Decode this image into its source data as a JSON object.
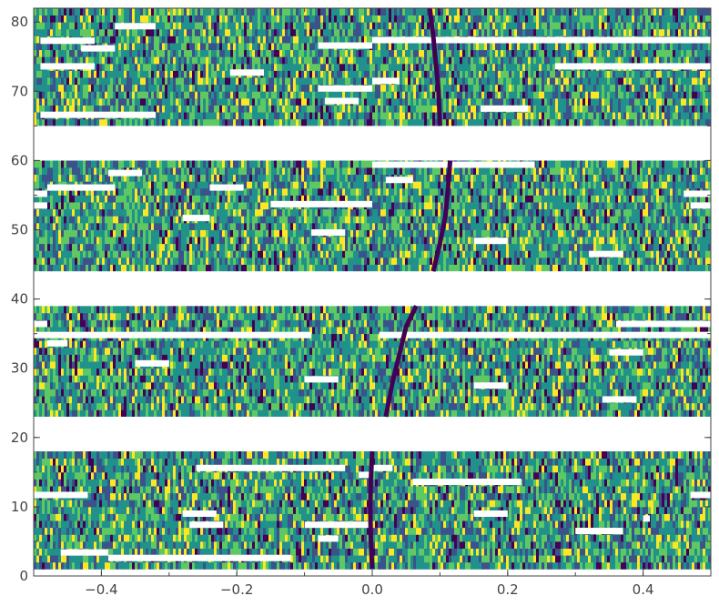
{
  "chart_data": {
    "type": "heatmap",
    "title": "",
    "xlabel": "",
    "ylabel": "",
    "xlim": [
      -0.5,
      0.5
    ],
    "ylim": [
      0,
      82
    ],
    "x_ticks": [
      -0.4,
      -0.2,
      0.0,
      0.2,
      0.4
    ],
    "x_tick_labels": [
      "−0.4",
      "−0.2",
      "0.0",
      "0.2",
      "0.4"
    ],
    "y_ticks": [
      0,
      10,
      20,
      30,
      40,
      50,
      60,
      70,
      80
    ],
    "y_tick_labels": [
      "0",
      "10",
      "20",
      "30",
      "40",
      "50",
      "60",
      "70",
      "80"
    ],
    "colormap": [
      "#440154",
      "#3b528b",
      "#21918c",
      "#5ec962",
      "#fde725"
    ],
    "grid": false,
    "data_rows": [
      [
        1,
        18
      ],
      [
        23,
        39
      ],
      [
        44,
        60
      ],
      [
        65,
        82
      ]
    ],
    "missing_bands": [
      [
        18,
        23
      ],
      [
        39,
        44
      ],
      [
        60,
        65
      ]
    ],
    "trace": {
      "color": "#440154",
      "segments": [
        [
          [
            0.0,
            1
          ],
          [
            -0.002,
            5
          ],
          [
            -0.003,
            10
          ],
          [
            -0.002,
            14
          ],
          [
            0.0,
            18
          ]
        ],
        [
          [
            0.02,
            23
          ],
          [
            0.03,
            28
          ],
          [
            0.04,
            32
          ],
          [
            0.05,
            36
          ],
          [
            0.065,
            39
          ]
        ],
        [
          [
            0.09,
            44
          ],
          [
            0.1,
            48
          ],
          [
            0.108,
            52
          ],
          [
            0.112,
            56
          ],
          [
            0.115,
            60
          ]
        ],
        [
          [
            0.1,
            65
          ],
          [
            0.098,
            70
          ],
          [
            0.094,
            74
          ],
          [
            0.09,
            78
          ],
          [
            0.085,
            82
          ]
        ]
      ]
    },
    "gaps": [
      [
        -0.49,
        -0.41,
        77.3
      ],
      [
        -0.43,
        -0.38,
        76.2
      ],
      [
        -0.38,
        -0.32,
        79.4
      ],
      [
        -0.49,
        -0.41,
        73.6
      ],
      [
        -0.08,
        0.0,
        76.6
      ],
      [
        0.0,
        0.5,
        77.4
      ],
      [
        0.27,
        0.5,
        73.6
      ],
      [
        -0.21,
        -0.16,
        72.7
      ],
      [
        -0.08,
        0.0,
        70.4
      ],
      [
        0.0,
        0.04,
        71.5
      ],
      [
        -0.07,
        -0.02,
        68.6
      ],
      [
        0.16,
        0.23,
        67.5
      ],
      [
        -0.49,
        -0.32,
        66.6
      ],
      [
        0.0,
        0.5,
        60.7
      ],
      [
        0.0,
        0.24,
        59.4
      ],
      [
        -0.39,
        -0.34,
        58.2
      ],
      [
        0.02,
        0.06,
        57.2
      ],
      [
        -0.48,
        -0.38,
        56.1
      ],
      [
        -0.24,
        -0.19,
        56.1
      ],
      [
        -0.5,
        -0.48,
        55.2
      ],
      [
        0.46,
        0.5,
        55.2
      ],
      [
        -0.15,
        0.0,
        53.7
      ],
      [
        -0.5,
        -0.48,
        53.5
      ],
      [
        0.47,
        0.5,
        53.5
      ],
      [
        -0.28,
        -0.24,
        51.7
      ],
      [
        -0.09,
        -0.04,
        49.6
      ],
      [
        0.15,
        0.2,
        48.4
      ],
      [
        0.32,
        0.37,
        46.5
      ],
      [
        -0.5,
        -0.48,
        36.4
      ],
      [
        0.36,
        0.5,
        36.4
      ],
      [
        -0.5,
        -0.09,
        34.8
      ],
      [
        0.01,
        0.5,
        34.8
      ],
      [
        -0.48,
        -0.45,
        33.6
      ],
      [
        0.35,
        0.4,
        32.3
      ],
      [
        -0.35,
        -0.3,
        30.7
      ],
      [
        -0.1,
        -0.05,
        28.4
      ],
      [
        0.15,
        0.2,
        27.5
      ],
      [
        0.34,
        0.39,
        25.5
      ],
      [
        -0.26,
        -0.04,
        15.6
      ],
      [
        0.0,
        0.03,
        15.6
      ],
      [
        -0.02,
        0.0,
        14.6
      ],
      [
        0.06,
        0.22,
        13.6
      ],
      [
        -0.5,
        -0.42,
        11.7
      ],
      [
        0.47,
        0.5,
        11.7
      ],
      [
        -0.28,
        -0.23,
        9.0
      ],
      [
        0.15,
        0.2,
        9.0
      ],
      [
        0.4,
        0.41,
        8.3
      ],
      [
        -0.27,
        -0.22,
        7.4
      ],
      [
        -0.1,
        0.0,
        7.4
      ],
      [
        0.3,
        0.37,
        6.5
      ],
      [
        -0.08,
        -0.05,
        5.4
      ],
      [
        -0.46,
        -0.39,
        3.4
      ],
      [
        -0.39,
        -0.33,
        2.6
      ],
      [
        -0.33,
        -0.12,
        2.6
      ]
    ]
  }
}
